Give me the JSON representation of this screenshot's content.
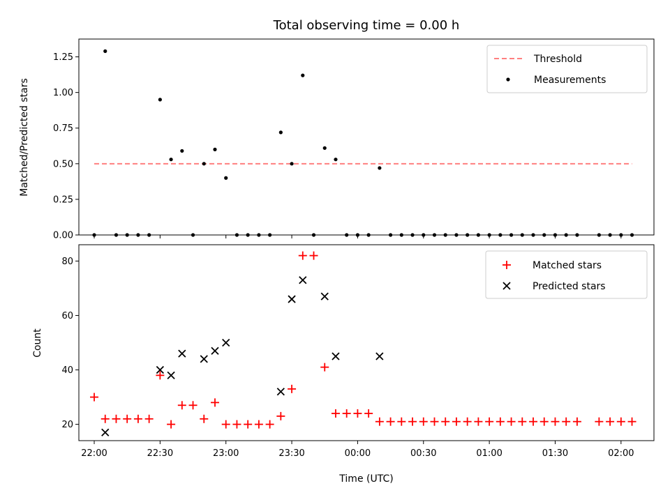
{
  "chart_data": [
    {
      "type": "scatter",
      "title": "Total observing time = 0.00 h",
      "xlabel": "",
      "ylabel": "Matched/Predicted stars",
      "ylim": [
        0,
        1.375
      ],
      "yticks": [
        "0.00",
        "0.25",
        "0.50",
        "0.75",
        "1.00",
        "1.25"
      ],
      "xlim": [
        "21:53",
        "02:15"
      ],
      "grid": false,
      "legend_position": "top-right",
      "threshold": {
        "name": "Threshold",
        "value": 0.5,
        "x_start": "22:00",
        "x_end": "02:05",
        "color": "#ff7f7f",
        "style": "dashed"
      },
      "series": [
        {
          "name": "Measurements",
          "color": "#000000",
          "marker": "dot",
          "x": [
            "22:00",
            "22:05",
            "22:10",
            "22:15",
            "22:20",
            "22:25",
            "22:30",
            "22:35",
            "22:40",
            "22:45",
            "22:50",
            "22:55",
            "23:00",
            "23:05",
            "23:10",
            "23:15",
            "23:20",
            "23:25",
            "23:30",
            "23:35",
            "23:40",
            "23:45",
            "23:50",
            "23:55",
            "00:00",
            "00:05",
            "00:10",
            "00:15",
            "00:20",
            "00:25",
            "00:30",
            "00:35",
            "00:40",
            "00:45",
            "00:50",
            "00:55",
            "01:00",
            "01:05",
            "01:10",
            "01:15",
            "01:20",
            "01:25",
            "01:30",
            "01:35",
            "01:40",
            "01:50",
            "01:55",
            "02:00",
            "02:05"
          ],
          "y": [
            0,
            1.29,
            0,
            0,
            0,
            0,
            0.95,
            0.53,
            0.59,
            0,
            0.5,
            0.6,
            0.4,
            0,
            0,
            0,
            0,
            0.72,
            0.5,
            1.12,
            0,
            0.61,
            0.53,
            0,
            0,
            0,
            0.47,
            0,
            0,
            0,
            0,
            0,
            0,
            0,
            0,
            0,
            0,
            0,
            0,
            0,
            0,
            0,
            0,
            0,
            0,
            0,
            0,
            0,
            0
          ]
        }
      ]
    },
    {
      "type": "scatter",
      "title": "",
      "xlabel": "Time (UTC)",
      "ylabel": "Count",
      "ylim": [
        14,
        86
      ],
      "yticks": [
        "20",
        "40",
        "60",
        "80"
      ],
      "xlim": [
        "21:53",
        "02:15"
      ],
      "xticks": [
        "22:00",
        "22:30",
        "23:00",
        "23:30",
        "00:00",
        "00:30",
        "01:00",
        "01:30",
        "02:00"
      ],
      "grid": false,
      "legend_position": "top-right",
      "series": [
        {
          "name": "Matched stars",
          "color": "#ff0000",
          "marker": "plus",
          "x": [
            "22:00",
            "22:05",
            "22:10",
            "22:15",
            "22:20",
            "22:25",
            "22:30",
            "22:35",
            "22:40",
            "22:45",
            "22:50",
            "22:55",
            "23:00",
            "23:05",
            "23:10",
            "23:15",
            "23:20",
            "23:25",
            "23:30",
            "23:35",
            "23:40",
            "23:45",
            "23:50",
            "23:55",
            "00:00",
            "00:05",
            "00:10",
            "00:15",
            "00:20",
            "00:25",
            "00:30",
            "00:35",
            "00:40",
            "00:45",
            "00:50",
            "00:55",
            "01:00",
            "01:05",
            "01:10",
            "01:15",
            "01:20",
            "01:25",
            "01:30",
            "01:35",
            "01:40",
            "01:50",
            "01:55",
            "02:00",
            "02:05"
          ],
          "y": [
            30,
            22,
            22,
            22,
            22,
            22,
            38,
            20,
            27,
            27,
            22,
            28,
            20,
            20,
            20,
            20,
            20,
            23,
            33,
            82,
            82,
            41,
            24,
            24,
            24,
            24,
            21,
            21,
            21,
            21,
            21,
            21,
            21,
            21,
            21,
            21,
            21,
            21,
            21,
            21,
            21,
            21,
            21,
            21,
            21,
            21,
            21,
            21,
            21
          ]
        },
        {
          "name": "Predicted stars",
          "color": "#000000",
          "marker": "x",
          "x": [
            "22:05",
            "22:30",
            "22:35",
            "22:40",
            "22:50",
            "22:55",
            "23:00",
            "23:25",
            "23:30",
            "23:35",
            "23:45",
            "23:50",
            "00:10"
          ],
          "y": [
            17,
            40,
            38,
            46,
            44,
            47,
            50,
            32,
            66,
            73,
            67,
            45,
            45
          ]
        }
      ]
    }
  ]
}
